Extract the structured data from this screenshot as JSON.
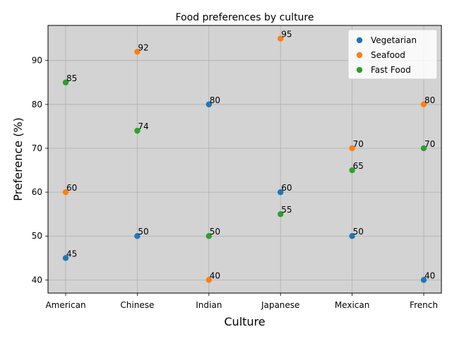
{
  "chart_data": {
    "type": "scatter",
    "title": "Food preferences by culture",
    "xlabel": "Culture",
    "ylabel": "Preference (%)",
    "categories": [
      "American",
      "Chinese",
      "Indian",
      "Japanese",
      "Mexican",
      "French"
    ],
    "ylim": [
      37,
      98
    ],
    "yticks": [
      40,
      50,
      60,
      70,
      80,
      90
    ],
    "grid": true,
    "legend_position": "top-right",
    "background_color": "#d3d3d3",
    "series": [
      {
        "name": "Vegetarian",
        "color": "#1f77b4",
        "values": [
          45,
          50,
          80,
          60,
          50,
          40
        ]
      },
      {
        "name": "Seafood",
        "color": "#ff7f0e",
        "values": [
          60,
          92,
          40,
          95,
          70,
          80
        ]
      },
      {
        "name": "Fast Food",
        "color": "#2ca02c",
        "values": [
          85,
          74,
          50,
          55,
          65,
          70
        ]
      }
    ]
  }
}
